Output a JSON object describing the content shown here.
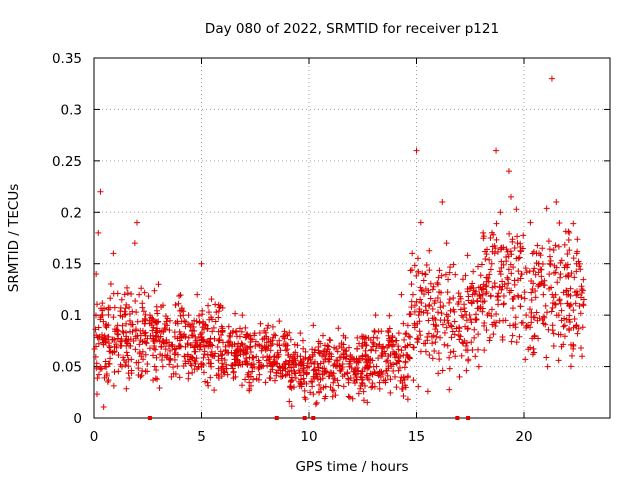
{
  "chart_data": {
    "type": "scatter",
    "title": "Day 080 of 2022, SRMTID for receiver p121",
    "xlabel": "GPS time / hours",
    "ylabel": "SRMTID / TECUs",
    "xlim": [
      0,
      24
    ],
    "ylim": [
      0,
      0.35
    ],
    "xticks": [
      0,
      5,
      10,
      15,
      20
    ],
    "xtick_labels": [
      "0",
      "5",
      "10",
      "15",
      "20"
    ],
    "yticks": [
      0,
      0.05,
      0.1,
      0.15,
      0.2,
      0.25,
      0.3,
      0.35
    ],
    "ytick_labels": [
      "0",
      "0.05",
      "0.1",
      "0.15",
      "0.2",
      "0.25",
      "0.3",
      "0.35"
    ],
    "grid": true,
    "marker": "plus",
    "color": "#e00000",
    "series": [
      {
        "name": "SRMTID",
        "x": [
          0.1,
          0.2,
          0.3,
          0.4,
          0.5,
          0.7,
          0.9,
          1.1,
          1.3,
          1.5,
          1.7,
          1.9,
          2.0,
          2.1,
          2.2,
          2.4,
          2.6,
          2.8,
          3.0,
          3.2,
          3.4,
          3.6,
          3.8,
          4.0,
          4.2,
          4.4,
          4.6,
          4.8,
          5.0,
          5.2,
          5.4,
          5.6,
          5.8,
          6.0,
          6.3,
          6.6,
          6.9,
          7.2,
          7.5,
          7.8,
          8.1,
          8.4,
          8.7,
          9.0,
          9.3,
          9.6,
          9.8,
          10.0,
          10.2,
          10.4,
          10.7,
          11.0,
          11.3,
          11.6,
          11.9,
          12.2,
          12.5,
          12.8,
          13.1,
          13.4,
          13.7,
          14.0,
          14.3,
          14.6,
          14.8,
          15.0,
          15.2,
          15.4,
          15.6,
          15.8,
          16.0,
          16.2,
          16.4,
          16.6,
          16.8,
          17.0,
          17.3,
          17.6,
          17.9,
          18.1,
          18.3,
          18.5,
          18.7,
          18.9,
          19.1,
          19.3,
          19.5,
          19.7,
          19.9,
          20.1,
          20.3,
          20.5,
          20.7,
          20.9,
          21.1,
          21.3,
          21.5,
          21.7,
          21.9,
          22.1,
          22.3,
          22.5,
          22.7
        ],
        "y": [
          0.14,
          0.18,
          0.22,
          0.1,
          0.08,
          0.07,
          0.16,
          0.09,
          0.05,
          0.11,
          0.07,
          0.17,
          0.19,
          0.12,
          0.06,
          0.08,
          0.1,
          0.07,
          0.13,
          0.05,
          0.09,
          0.04,
          0.11,
          0.07,
          0.06,
          0.1,
          0.08,
          0.12,
          0.15,
          0.09,
          0.07,
          0.06,
          0.11,
          0.05,
          0.08,
          0.06,
          0.1,
          0.04,
          0.07,
          0.05,
          0.09,
          0.06,
          0.04,
          0.08,
          0.03,
          0.06,
          0.02,
          0.05,
          0.09,
          0.04,
          0.06,
          0.03,
          0.05,
          0.08,
          0.02,
          0.04,
          0.07,
          0.05,
          0.1,
          0.06,
          0.08,
          0.04,
          0.12,
          0.09,
          0.16,
          0.26,
          0.19,
          0.14,
          0.11,
          0.08,
          0.13,
          0.21,
          0.17,
          0.09,
          0.06,
          0.04,
          0.07,
          0.12,
          0.05,
          0.18,
          0.1,
          0.15,
          0.26,
          0.2,
          0.13,
          0.24,
          0.09,
          0.17,
          0.14,
          0.1,
          0.19,
          0.08,
          0.16,
          0.12,
          0.05,
          0.33,
          0.21,
          0.14,
          0.09,
          0.18,
          0.07,
          0.12,
          0.06
        ]
      }
    ],
    "markers_on_axis": [
      2.6,
      8.5,
      9.8,
      10.2,
      16.9,
      17.4
    ]
  }
}
